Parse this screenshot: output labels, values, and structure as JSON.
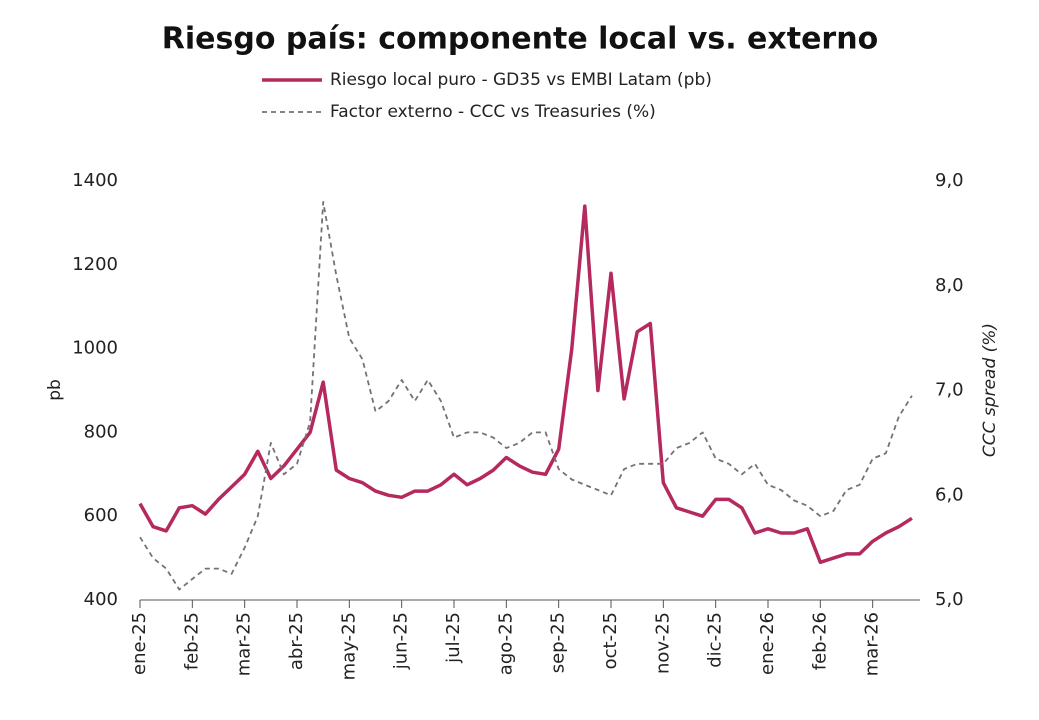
{
  "chart_data": {
    "type": "line",
    "title": "Riesgo país: componente local vs. externo",
    "y_label": "pb",
    "y2_label": "CCC spread (%)",
    "categories": [
      "ene-25",
      null,
      null,
      null,
      "feb-25",
      null,
      null,
      null,
      "mar-25",
      null,
      null,
      null,
      "abr-25",
      null,
      null,
      null,
      "may-25",
      null,
      null,
      null,
      "jun-25",
      null,
      null,
      null,
      "jul-25",
      null,
      null,
      null,
      "ago-25",
      null,
      null,
      null,
      "sep-25",
      null,
      null,
      null,
      "oct-25",
      null,
      null,
      null,
      "nov-25",
      null,
      null,
      null,
      "dic-25",
      null,
      null,
      null,
      "ene-26",
      null,
      null,
      null,
      "feb-26",
      null,
      null,
      null,
      "mar-26",
      null,
      null,
      null
    ],
    "series": [
      {
        "name": "Riesgo local puro - GD35 vs EMBI Latam (pb)",
        "color": "#b5295e",
        "style": "solid",
        "axis": "y",
        "values": [
          630,
          575,
          565,
          620,
          625,
          605,
          640,
          670,
          700,
          755,
          690,
          720,
          760,
          800,
          920,
          710,
          690,
          680,
          660,
          650,
          645,
          660,
          660,
          675,
          700,
          675,
          690,
          710,
          740,
          720,
          705,
          700,
          760,
          1000,
          1340,
          900,
          1180,
          880,
          1040,
          1060,
          680,
          620,
          610,
          600,
          640,
          640,
          620,
          560,
          570,
          560,
          560,
          570,
          490,
          500,
          510,
          510,
          540,
          560,
          575,
          595
        ]
      },
      {
        "name": "Factor externo - CCC vs Treasuries (%)",
        "color": "#777074",
        "style": "dashed",
        "axis": "y2",
        "values": [
          5.6,
          5.4,
          5.3,
          5.1,
          5.2,
          5.3,
          5.3,
          5.25,
          5.5,
          5.8,
          6.5,
          6.2,
          6.3,
          6.7,
          8.8,
          8.1,
          7.5,
          7.3,
          6.8,
          6.9,
          7.1,
          6.9,
          7.1,
          6.9,
          6.55,
          6.6,
          6.6,
          6.55,
          6.45,
          6.5,
          6.6,
          6.6,
          6.25,
          6.15,
          6.1,
          6.05,
          6.0,
          6.25,
          6.3,
          6.3,
          6.3,
          6.45,
          6.5,
          6.6,
          6.35,
          6.3,
          6.2,
          6.3,
          6.1,
          6.05,
          5.95,
          5.9,
          5.8,
          5.85,
          6.05,
          6.1,
          6.35,
          6.4,
          6.75,
          6.95
        ]
      }
    ],
    "ylim": [
      400,
      1400
    ],
    "yticks": [
      400,
      600,
      800,
      1000,
      1200,
      1400
    ],
    "y2lim": [
      5,
      9
    ],
    "y2ticks": [
      {
        "value": 5,
        "label": "5,0"
      },
      {
        "value": 6,
        "label": "6,0"
      },
      {
        "value": 7,
        "label": "7,0"
      },
      {
        "value": 8,
        "label": "8,0"
      },
      {
        "value": 9,
        "label": "9,0"
      }
    ],
    "legend": "top",
    "grid": false
  }
}
